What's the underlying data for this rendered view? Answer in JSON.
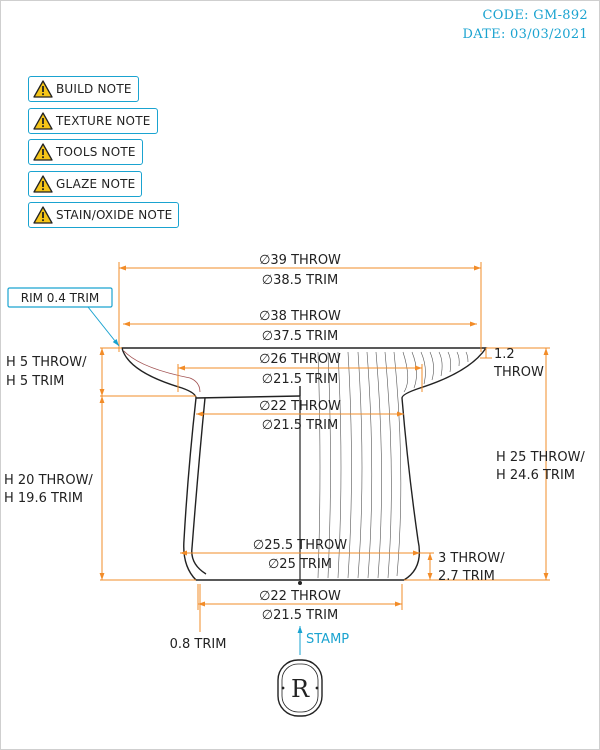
{
  "header": {
    "code": "CODE: GM-892",
    "date": "DATE: 03/03/2021"
  },
  "notes": [
    {
      "label": "BUILD NOTE",
      "icon": "warning-icon"
    },
    {
      "label": "TEXTURE NOTE",
      "icon": "warning-icon"
    },
    {
      "label": "TOOLS NOTE",
      "icon": "warning-icon"
    },
    {
      "label": "GLAZE NOTE",
      "icon": "warning-icon"
    },
    {
      "label": "STAIN/OXIDE NOTE",
      "icon": "warning-icon"
    }
  ],
  "dimensions": {
    "rim_outer_throw": "∅39 THROW",
    "rim_outer_trim": "∅38.5 TRIM",
    "rim_callout": "RIM 0.4 TRIM",
    "rim_inner_throw": "∅38 THROW",
    "rim_inner_trim": "∅37.5 TRIM",
    "lip_thickness": "1.2",
    "lip_thickness_unit": "THROW",
    "gallery_throw": "∅26 THROW",
    "gallery_trim": "∅21.5 TRIM",
    "neck_throw": "∅22 THROW",
    "neck_trim": "∅21.5 TRIM",
    "top_height_throw": "H 5 THROW/",
    "top_height_trim": "H 5 TRIM",
    "body_height_throw": "H 20 THROW/",
    "body_height_trim": "H 19.6 TRIM",
    "total_height_throw": "H 25 THROW/",
    "total_height_trim": "H 24.6 TRIM",
    "belly_throw": "∅25.5 THROW",
    "belly_trim": "∅25 TRIM",
    "foot_height_throw": "3 THROW/",
    "foot_height_trim": "2.7 TRIM",
    "base_throw": "∅22 THROW",
    "base_trim": "∅21.5 TRIM",
    "wall_trim": "0.8 TRIM",
    "stamp_label": "STAMP",
    "stamp_letter": "R"
  },
  "colors": {
    "accent": "#1aa3d0",
    "dimension": "#f28c28",
    "outline": "#222222",
    "warning": "#f5c518"
  }
}
